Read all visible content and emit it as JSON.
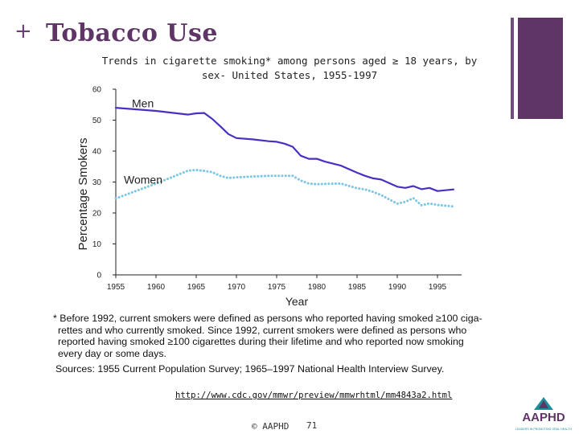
{
  "slide": {
    "plus": "+",
    "title": "Tobacco Use",
    "url": "http://www.cdc.gov/mmwr/preview/mmwrhtml/mm4843a2.html",
    "copyright": "© AAPHD",
    "page_number": "71",
    "accent_color": "#5e3566"
  },
  "chart_data": {
    "type": "line",
    "title_lines": [
      "Trends in cigarette smoking* among persons aged ≥ 18 years, by",
      "sex- United States, 1955-1997"
    ],
    "xlabel": "Year",
    "ylabel": "Percentage Smokers",
    "xlim": [
      1955,
      1998
    ],
    "ylim": [
      0,
      60
    ],
    "x_ticks": [
      1955,
      1960,
      1965,
      1970,
      1975,
      1980,
      1985,
      1990,
      1995
    ],
    "y_ticks": [
      0,
      10,
      20,
      30,
      40,
      50,
      60
    ],
    "grid": false,
    "series": [
      {
        "name": "Men",
        "style": "solid",
        "color": "#4b2fc4",
        "x": [
          1955,
          1960,
          1964,
          1965,
          1966,
          1967,
          1968,
          1969,
          1970,
          1972,
          1974,
          1975,
          1976,
          1977,
          1978,
          1979,
          1980,
          1981,
          1983,
          1985,
          1986,
          1987,
          1988,
          1990,
          1991,
          1992,
          1993,
          1994,
          1995,
          1997
        ],
        "values": [
          54.0,
          53.0,
          51.8,
          52.2,
          52.3,
          50.4,
          48.0,
          45.5,
          44.2,
          43.8,
          43.2,
          43.0,
          42.4,
          41.4,
          38.5,
          37.5,
          37.5,
          36.6,
          35.3,
          33.0,
          32.0,
          31.2,
          30.8,
          28.5,
          28.1,
          28.7,
          27.7,
          28.1,
          27.1,
          27.6
        ]
      },
      {
        "name": "Women",
        "style": "dotted",
        "color": "#7cc6e6",
        "x": [
          1955,
          1960,
          1964,
          1965,
          1966,
          1967,
          1968,
          1969,
          1970,
          1972,
          1974,
          1975,
          1976,
          1977,
          1978,
          1979,
          1980,
          1981,
          1983,
          1985,
          1986,
          1987,
          1988,
          1990,
          1991,
          1992,
          1993,
          1994,
          1995,
          1997
        ],
        "values": [
          24.7,
          29.5,
          33.7,
          33.9,
          33.6,
          33.2,
          32.0,
          31.3,
          31.5,
          31.8,
          32.0,
          32.0,
          32.0,
          32.0,
          30.5,
          29.5,
          29.3,
          29.4,
          29.5,
          28.0,
          27.6,
          26.8,
          25.8,
          23.0,
          23.6,
          24.8,
          22.5,
          23.1,
          22.6,
          22.1
        ]
      }
    ],
    "footnote_lines": [
      "* Before 1992, current smokers were defined as persons who reported having smoked ≥100 ciga-",
      "rettes and who currently smoked. Since 1992, current smokers were defined as persons who",
      "reported having smoked ≥100 cigarettes during their lifetime and who reported now smoking",
      "every day or some days."
    ],
    "source": "Sources: 1955 Current Population Survey; 1965–1997 National Health Interview Survey."
  },
  "logo": {
    "text": "AAPHD",
    "tagline": "LEADERS IN PROMOTING ORAL HEALTH"
  }
}
